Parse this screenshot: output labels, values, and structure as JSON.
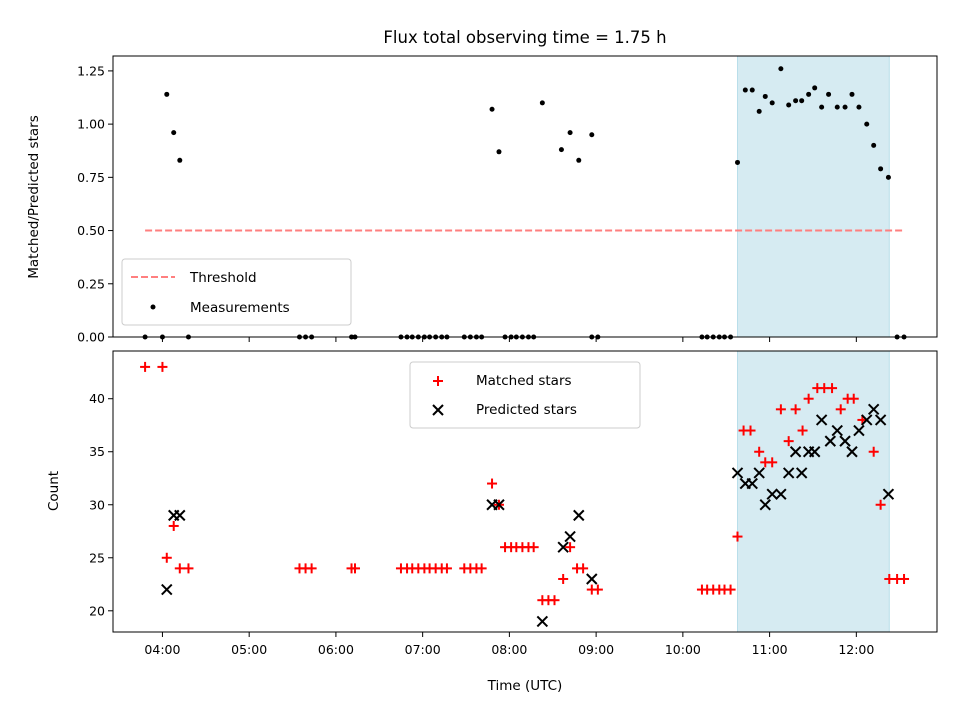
{
  "title": "Flux total observing time = 1.75 h",
  "colors": {
    "threshold": "#ff7f7f",
    "measurement": "#000000",
    "matched": "#ff0000",
    "predicted": "#000000",
    "highlight": "#add8e6"
  },
  "chart_data": [
    {
      "type": "scatter",
      "ylabel": "Matched/Predicted stars",
      "ylim": [
        0,
        1.32
      ],
      "xlim": [
        3.43,
        12.93
      ],
      "yticks": [
        0,
        0.25,
        0.5,
        0.75,
        1.0,
        1.25
      ],
      "ytick_labels": [
        "0.00",
        "0.25",
        "0.50",
        "0.75",
        "1.00",
        "1.25"
      ],
      "highlight_span": [
        10.63,
        12.38
      ],
      "threshold": {
        "name": "Threshold",
        "value": 0.5,
        "x_range": [
          3.8,
          12.55
        ]
      },
      "legend": {
        "position": "lower left",
        "entries": [
          "Threshold",
          "Measurements"
        ]
      },
      "series": [
        {
          "name": "Measurements",
          "points": [
            [
              3.8,
              0
            ],
            [
              4.0,
              0
            ],
            [
              4.05,
              1.14
            ],
            [
              4.13,
              0.96
            ],
            [
              4.2,
              0.83
            ],
            [
              4.3,
              0
            ],
            [
              5.58,
              0
            ],
            [
              5.65,
              0
            ],
            [
              5.72,
              0
            ],
            [
              6.18,
              0
            ],
            [
              6.22,
              0
            ],
            [
              6.75,
              0
            ],
            [
              6.82,
              0
            ],
            [
              6.88,
              0
            ],
            [
              6.95,
              0
            ],
            [
              7.02,
              0
            ],
            [
              7.08,
              0
            ],
            [
              7.15,
              0
            ],
            [
              7.22,
              0
            ],
            [
              7.28,
              0
            ],
            [
              7.48,
              0
            ],
            [
              7.55,
              0
            ],
            [
              7.62,
              0
            ],
            [
              7.68,
              0
            ],
            [
              7.8,
              1.07
            ],
            [
              7.88,
              0.87
            ],
            [
              7.95,
              0
            ],
            [
              8.02,
              0
            ],
            [
              8.08,
              0
            ],
            [
              8.15,
              0
            ],
            [
              8.22,
              0
            ],
            [
              8.28,
              0
            ],
            [
              8.38,
              1.1
            ],
            [
              8.6,
              0.88
            ],
            [
              8.7,
              0.96
            ],
            [
              8.8,
              0.83
            ],
            [
              8.95,
              0.95
            ],
            [
              8.95,
              0
            ],
            [
              9.02,
              0
            ],
            [
              10.22,
              0
            ],
            [
              10.28,
              0
            ],
            [
              10.35,
              0
            ],
            [
              10.42,
              0
            ],
            [
              10.48,
              0
            ],
            [
              10.55,
              0
            ],
            [
              10.63,
              0.82
            ],
            [
              10.72,
              1.16
            ],
            [
              10.8,
              1.16
            ],
            [
              10.88,
              1.06
            ],
            [
              10.95,
              1.13
            ],
            [
              11.03,
              1.1
            ],
            [
              11.13,
              1.26
            ],
            [
              11.22,
              1.09
            ],
            [
              11.3,
              1.11
            ],
            [
              11.37,
              1.11
            ],
            [
              11.45,
              1.14
            ],
            [
              11.52,
              1.17
            ],
            [
              11.6,
              1.08
            ],
            [
              11.68,
              1.14
            ],
            [
              11.78,
              1.08
            ],
            [
              11.87,
              1.08
            ],
            [
              11.95,
              1.14
            ],
            [
              12.03,
              1.08
            ],
            [
              12.12,
              1.0
            ],
            [
              12.2,
              0.9
            ],
            [
              12.28,
              0.79
            ],
            [
              12.37,
              0.75
            ],
            [
              12.47,
              0
            ],
            [
              12.55,
              0
            ]
          ]
        }
      ]
    },
    {
      "type": "scatter",
      "ylabel": "Count",
      "xlabel": "Time (UTC)",
      "ylim": [
        18,
        44.5
      ],
      "xlim": [
        3.43,
        12.93
      ],
      "yticks": [
        20,
        25,
        30,
        35,
        40
      ],
      "ytick_labels": [
        "20",
        "25",
        "30",
        "35",
        "40"
      ],
      "xticks": [
        4,
        5,
        6,
        7,
        8,
        9,
        10,
        11,
        12
      ],
      "xtick_labels": [
        "04:00",
        "05:00",
        "06:00",
        "07:00",
        "08:00",
        "09:00",
        "10:00",
        "11:00",
        "12:00"
      ],
      "highlight_span": [
        10.63,
        12.38
      ],
      "legend": {
        "position": "upper center",
        "entries": [
          "Matched stars",
          "Predicted stars"
        ]
      },
      "series": [
        {
          "name": "Matched stars",
          "points": [
            [
              3.8,
              43
            ],
            [
              4.0,
              43
            ],
            [
              4.05,
              25
            ],
            [
              4.13,
              28
            ],
            [
              4.2,
              24
            ],
            [
              4.3,
              24
            ],
            [
              5.58,
              24
            ],
            [
              5.65,
              24
            ],
            [
              5.72,
              24
            ],
            [
              6.18,
              24
            ],
            [
              6.22,
              24
            ],
            [
              6.75,
              24
            ],
            [
              6.82,
              24
            ],
            [
              6.88,
              24
            ],
            [
              6.95,
              24
            ],
            [
              7.02,
              24
            ],
            [
              7.08,
              24
            ],
            [
              7.15,
              24
            ],
            [
              7.22,
              24
            ],
            [
              7.28,
              24
            ],
            [
              7.48,
              24
            ],
            [
              7.55,
              24
            ],
            [
              7.62,
              24
            ],
            [
              7.68,
              24
            ],
            [
              7.8,
              32
            ],
            [
              7.88,
              30
            ],
            [
              7.95,
              26
            ],
            [
              8.02,
              26
            ],
            [
              8.08,
              26
            ],
            [
              8.15,
              26
            ],
            [
              8.22,
              26
            ],
            [
              8.28,
              26
            ],
            [
              8.38,
              21
            ],
            [
              8.45,
              21
            ],
            [
              8.52,
              21
            ],
            [
              8.62,
              23
            ],
            [
              8.7,
              26
            ],
            [
              8.78,
              24
            ],
            [
              8.85,
              24
            ],
            [
              8.95,
              22
            ],
            [
              9.02,
              22
            ],
            [
              10.22,
              22
            ],
            [
              10.28,
              22
            ],
            [
              10.35,
              22
            ],
            [
              10.42,
              22
            ],
            [
              10.48,
              22
            ],
            [
              10.55,
              22
            ],
            [
              10.63,
              27
            ],
            [
              10.7,
              37
            ],
            [
              10.78,
              37
            ],
            [
              10.88,
              35
            ],
            [
              10.95,
              34
            ],
            [
              11.03,
              34
            ],
            [
              11.13,
              39
            ],
            [
              11.22,
              36
            ],
            [
              11.3,
              39
            ],
            [
              11.38,
              37
            ],
            [
              11.45,
              40
            ],
            [
              11.55,
              41
            ],
            [
              11.63,
              41
            ],
            [
              11.72,
              41
            ],
            [
              11.82,
              39
            ],
            [
              11.9,
              40
            ],
            [
              11.97,
              40
            ],
            [
              12.07,
              38
            ],
            [
              12.2,
              35
            ],
            [
              12.28,
              30
            ],
            [
              12.38,
              23
            ],
            [
              12.47,
              23
            ],
            [
              12.55,
              23
            ]
          ]
        },
        {
          "name": "Predicted stars",
          "points": [
            [
              4.05,
              22
            ],
            [
              4.13,
              29
            ],
            [
              4.2,
              29
            ],
            [
              7.8,
              30
            ],
            [
              7.88,
              30
            ],
            [
              8.38,
              19
            ],
            [
              8.62,
              26
            ],
            [
              8.7,
              27
            ],
            [
              8.8,
              29
            ],
            [
              8.95,
              23
            ],
            [
              10.63,
              33
            ],
            [
              10.72,
              32
            ],
            [
              10.8,
              32
            ],
            [
              10.88,
              33
            ],
            [
              10.95,
              30
            ],
            [
              11.03,
              31
            ],
            [
              11.13,
              31
            ],
            [
              11.22,
              33
            ],
            [
              11.3,
              35
            ],
            [
              11.37,
              33
            ],
            [
              11.45,
              35
            ],
            [
              11.52,
              35
            ],
            [
              11.6,
              38
            ],
            [
              11.7,
              36
            ],
            [
              11.78,
              37
            ],
            [
              11.87,
              36
            ],
            [
              11.95,
              35
            ],
            [
              12.03,
              37
            ],
            [
              12.12,
              38
            ],
            [
              12.2,
              39
            ],
            [
              12.28,
              38
            ],
            [
              12.37,
              31
            ]
          ]
        }
      ]
    }
  ]
}
